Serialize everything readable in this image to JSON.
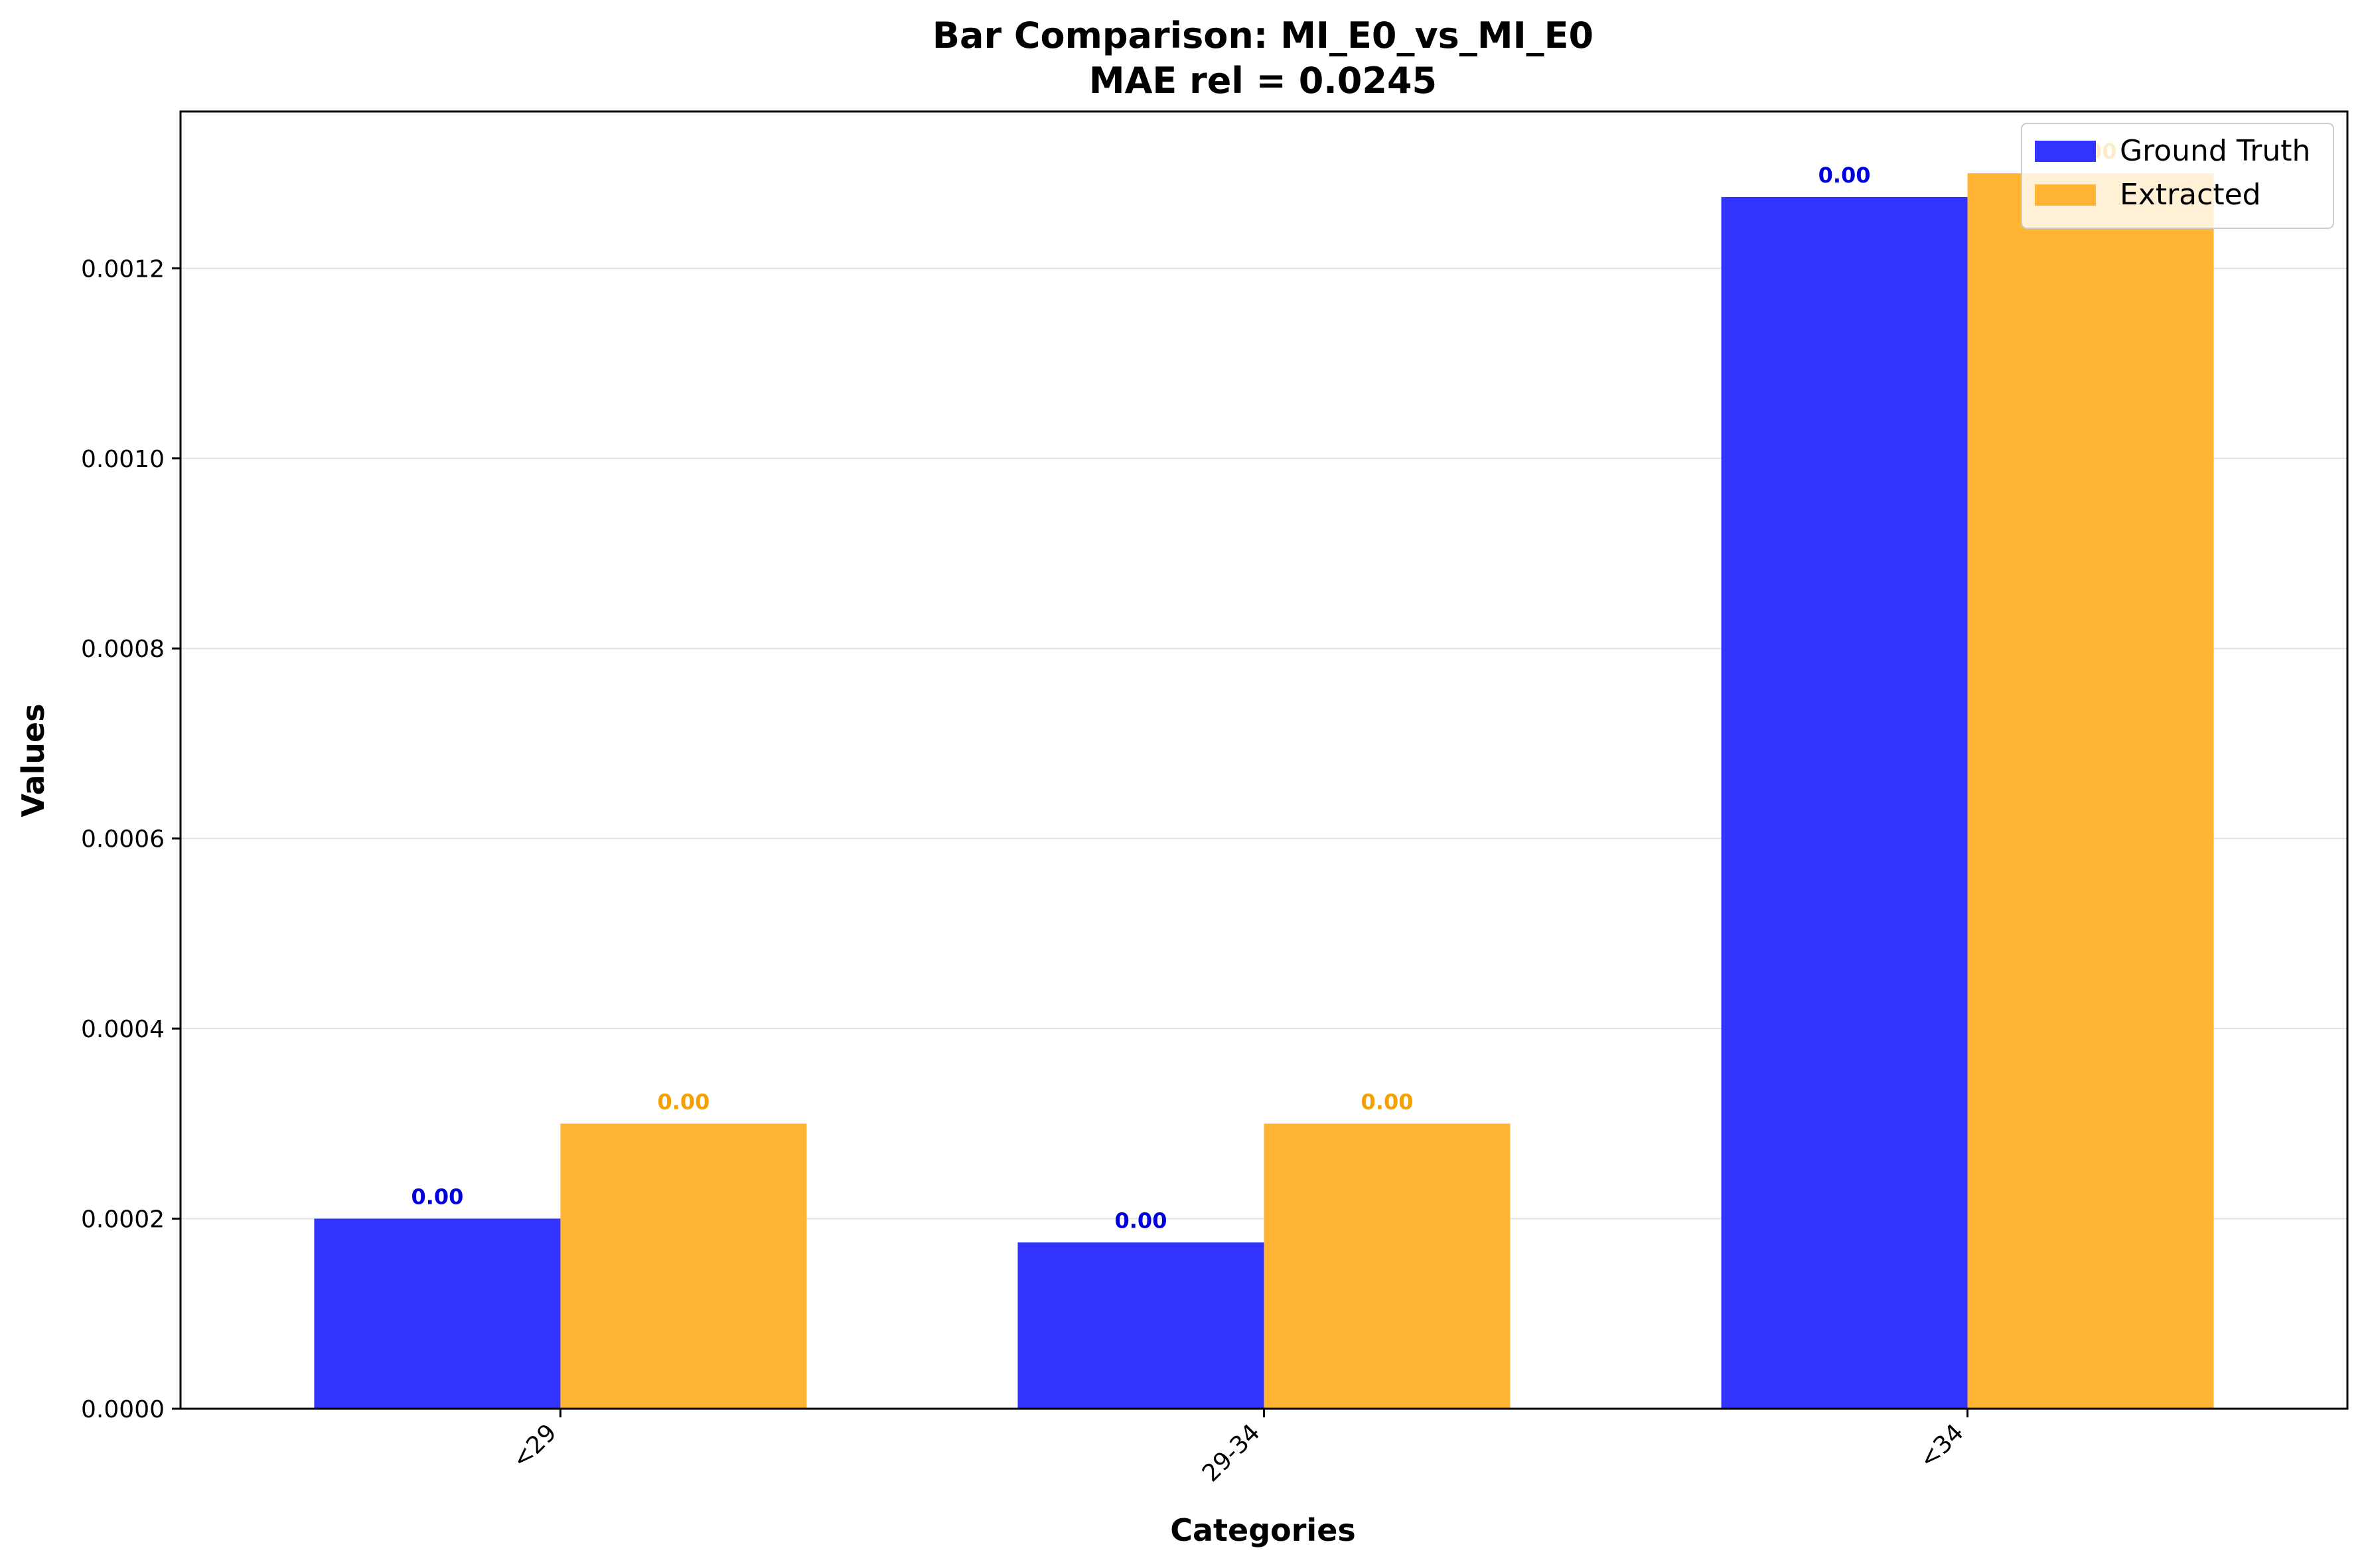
{
  "chart_data": {
    "type": "bar",
    "title": "Bar Comparison: MI_E0_vs_MI_E0",
    "subtitle": "MAE rel = 0.0245",
    "xlabel": "Categories",
    "ylabel": "Values",
    "categories": [
      "<29",
      "29-34",
      "<34"
    ],
    "series": [
      {
        "name": "Ground Truth",
        "color": "#3333ff",
        "values": [
          0.0002,
          0.000175,
          0.001275
        ],
        "labels": [
          "0.00",
          "0.00",
          "0.00"
        ]
      },
      {
        "name": "Extracted",
        "color": "#ffb533",
        "values": [
          0.0003,
          0.0003,
          0.0013
        ],
        "labels": [
          "0.00",
          "0.00",
          "0.00"
        ]
      }
    ],
    "label_colors": [
      "#0000dd",
      "#f5a000"
    ],
    "ylim": [
      0,
      0.001365
    ],
    "yticks": [
      "0.0000",
      "0.0002",
      "0.0004",
      "0.0006",
      "0.0008",
      "0.0010",
      "0.0012"
    ],
    "ytick_values": [
      0,
      0.0002,
      0.0004,
      0.0006,
      0.0008,
      0.001,
      0.0012
    ],
    "grid": "horizontal",
    "legend": "top-right"
  }
}
